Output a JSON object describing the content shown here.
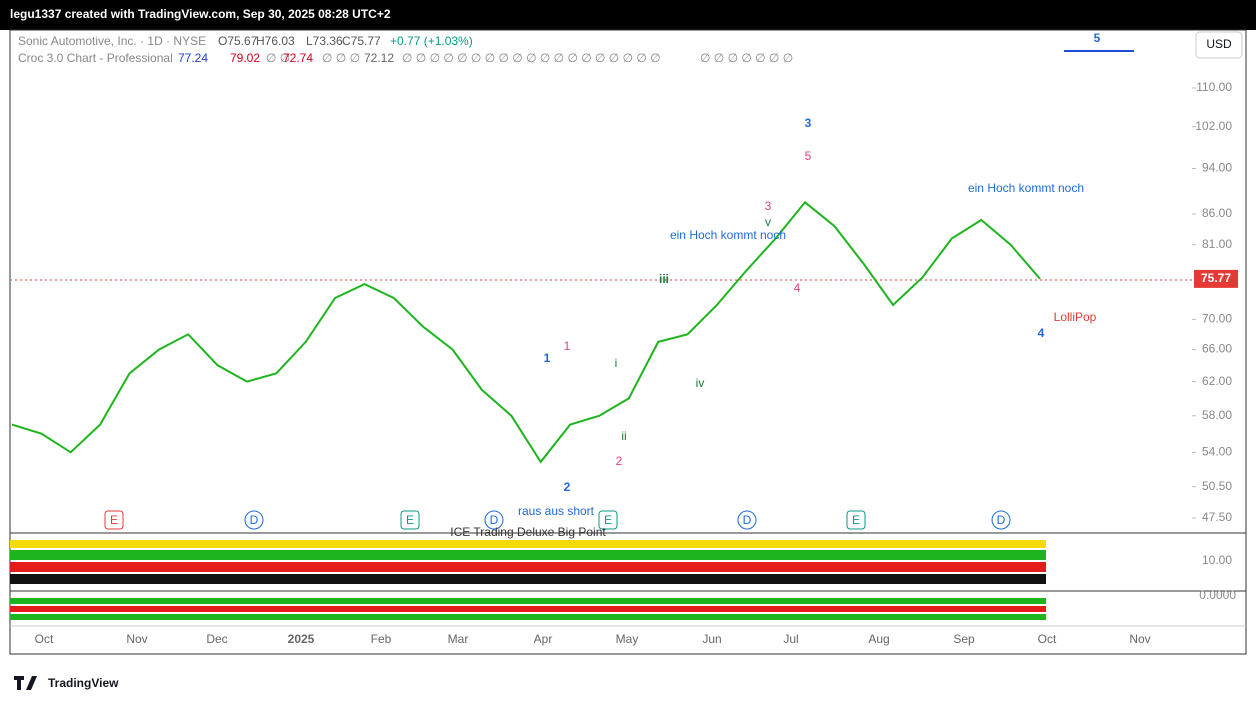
{
  "header": {
    "caption": "legu1337 created with TradingView.com, Sep 30, 2025 08:28 UTC+2"
  },
  "legend": {
    "symbol": "Sonic Automotive, Inc. · 1D · NYSE",
    "ohlc": [
      "O75.67",
      "H76.03",
      "L73.36",
      "C75.77",
      "+0.77 (+1.03%)"
    ],
    "indicator": "Croc 3.0 Chart - Professional",
    "indicator_values": [
      "77.24",
      "79.02",
      "∅ ∅",
      "72.74",
      "∅ ∅ ∅",
      "72.12",
      "∅ ∅ ∅ ∅ ∅ ∅ ∅ ∅ ∅ ∅ ∅ ∅ ∅ ∅ ∅ ∅ ∅ ∅ ∅",
      "∅ ∅ ∅ ∅ ∅ ∅ ∅"
    ]
  },
  "currency": "USD",
  "price_axis": {
    "scale": "log",
    "ticks": [
      {
        "value": 110,
        "label": "110.00"
      },
      {
        "value": 102,
        "label": "102.00"
      },
      {
        "value": 94,
        "label": "94.00"
      },
      {
        "value": 86,
        "label": "86.00"
      },
      {
        "value": 81,
        "label": "81.00"
      },
      {
        "value": 70,
        "label": "70.00"
      },
      {
        "value": 66,
        "label": "66.00"
      },
      {
        "value": 62,
        "label": "62.00"
      },
      {
        "value": 58,
        "label": "58.00"
      },
      {
        "value": 54,
        "label": "54.00"
      },
      {
        "value": 50.5,
        "label": "50.50"
      },
      {
        "value": 47.5,
        "label": "47.50"
      }
    ],
    "last_price": {
      "value": 75.77,
      "label": "75.77"
    }
  },
  "closes": [
    57,
    56,
    54,
    57,
    63,
    66,
    68,
    64,
    62,
    63,
    67,
    73,
    75,
    73,
    69,
    66,
    61,
    58,
    53,
    57,
    58,
    60,
    67,
    68,
    72,
    77,
    82,
    88,
    84,
    78,
    72,
    76,
    82,
    85,
    81,
    75.77
  ],
  "time_axis": [
    "Oct",
    "Nov",
    "Dec",
    "2025",
    "Feb",
    "Mar",
    "Apr",
    "May",
    "Jun",
    "Jul",
    "Aug",
    "Sep",
    "Oct",
    "Nov"
  ],
  "annotations": [
    "5",
    "3",
    "5",
    "3",
    "v",
    "ein Hoch kommt noch",
    "ein Hoch kommt noch",
    "4",
    "iii",
    "1",
    "1",
    "i",
    "ii",
    "2",
    "2",
    "iv",
    "raus aus short",
    "LolliPop",
    "4"
  ],
  "events": [
    "E",
    "D",
    "E",
    "D",
    "E",
    "D",
    "E",
    "D"
  ],
  "panels": [
    "ICE Trading Deluxe Big Point",
    "10.00",
    "0.0000"
  ],
  "footer": {
    "logo": "TradingView"
  }
}
